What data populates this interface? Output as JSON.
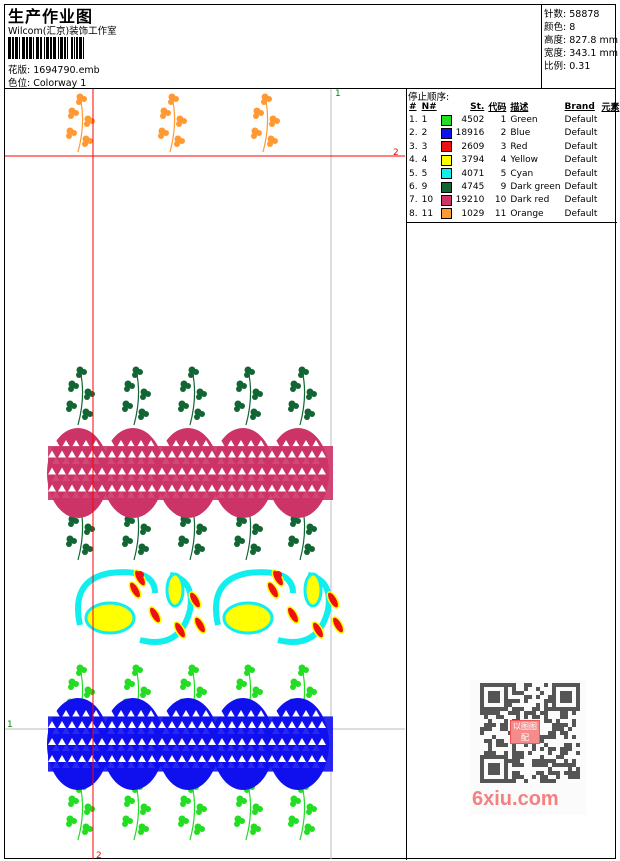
{
  "header": {
    "title": "生产作业图",
    "company": "Wilcom(汇京)装饰工作室",
    "design_label": "花版:",
    "design_value": "1694790.emb",
    "colorway_label": "色位:",
    "colorway_value": "Colorway 1"
  },
  "stats": [
    {
      "label": "针数:",
      "value": "58878"
    },
    {
      "label": "颜色:",
      "value": "8"
    },
    {
      "label": "高度:",
      "value": "827.8 mm"
    },
    {
      "label": "宽度:",
      "value": "343.1 mm"
    },
    {
      "label": "比例:",
      "value": "0.31"
    }
  ],
  "stop_sequence": {
    "title": "停止顺序:",
    "headers": [
      "#",
      "N#",
      "St.",
      "代码",
      "描述",
      "Brand",
      "元素"
    ],
    "rows": [
      {
        "idx": "1.",
        "n": "1",
        "color": "#22dd22",
        "st": "4502",
        "code": "1",
        "desc": "Green",
        "brand": "Default"
      },
      {
        "idx": "2.",
        "n": "2",
        "color": "#1010ee",
        "st": "18916",
        "code": "2",
        "desc": "Blue",
        "brand": "Default"
      },
      {
        "idx": "3.",
        "n": "3",
        "color": "#ee1111",
        "st": "2609",
        "code": "3",
        "desc": "Red",
        "brand": "Default"
      },
      {
        "idx": "4.",
        "n": "4",
        "color": "#ffff00",
        "st": "3794",
        "code": "4",
        "desc": "Yellow",
        "brand": "Default"
      },
      {
        "idx": "5.",
        "n": "5",
        "color": "#11eeee",
        "st": "4071",
        "code": "5",
        "desc": "Cyan",
        "brand": "Default"
      },
      {
        "idx": "6.",
        "n": "9",
        "color": "#116633",
        "st": "4745",
        "code": "9",
        "desc": "Dark green",
        "brand": "Default"
      },
      {
        "idx": "7.",
        "n": "10",
        "color": "#cc3366",
        "st": "19210",
        "code": "10",
        "desc": "Dark red",
        "brand": "Default"
      },
      {
        "idx": "8.",
        "n": "11",
        "color": "#ff9933",
        "st": "1029",
        "code": "11",
        "desc": "Orange",
        "brand": "Default"
      }
    ]
  },
  "canvas": {
    "marker_1": "1",
    "marker_2": "2"
  },
  "watermark": {
    "text": "6xiu.com",
    "seal": "以图图配"
  }
}
